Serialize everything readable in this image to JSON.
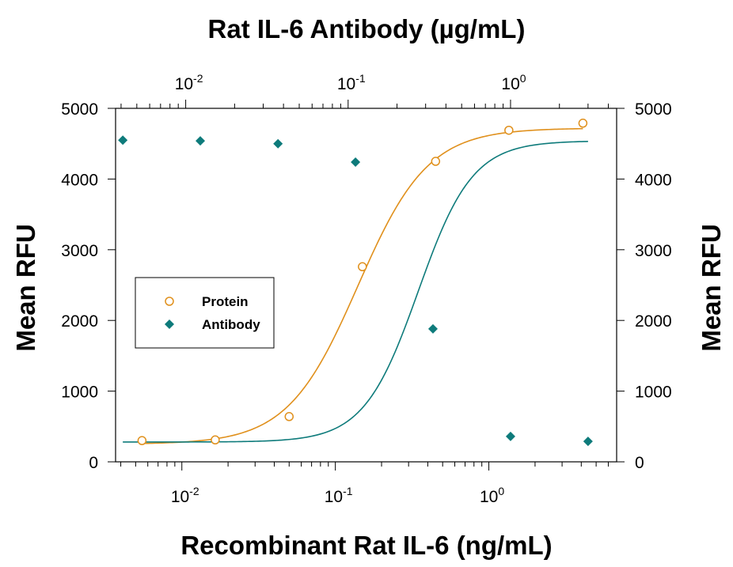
{
  "chart_data": {
    "type": "scatter",
    "title": "",
    "top_axis": {
      "label": "Rat IL-6 Antibody (µg/mL)",
      "scale": "log",
      "range": [
        0.0037,
        4.5
      ],
      "ticks": [
        {
          "value": 0.01,
          "base": "10",
          "exp": "-2"
        },
        {
          "value": 0.1,
          "base": "10",
          "exp": "-1"
        },
        {
          "value": 1,
          "base": "10",
          "exp": "0"
        }
      ]
    },
    "bottom_axis": {
      "label": "Recombinant Rat IL-6 (ng/mL)",
      "scale": "log",
      "range": [
        0.0037,
        6.8
      ],
      "ticks": [
        {
          "value": 0.01,
          "base": "10",
          "exp": "-2"
        },
        {
          "value": 0.1,
          "base": "10",
          "exp": "-1"
        },
        {
          "value": 1,
          "base": "10",
          "exp": "0"
        }
      ]
    },
    "left_axis": {
      "label": "Mean RFU",
      "range": [
        0,
        5000
      ],
      "ticks": [
        "0",
        "1000",
        "2000",
        "3000",
        "4000",
        "5000"
      ]
    },
    "right_axis": {
      "label": "Mean RFU",
      "range": [
        0,
        5000
      ],
      "ticks": [
        "0",
        "1000",
        "2000",
        "3000",
        "4000",
        "5000"
      ]
    },
    "grid": false,
    "legend": {
      "position": "center-left"
    },
    "series": [
      {
        "name": "Protein",
        "axis": "bottom",
        "marker": "open-circle",
        "color": "#e0901c",
        "x": [
          0.0055,
          0.0165,
          0.05,
          0.15,
          0.45,
          1.35,
          4.1
        ],
        "y": [
          300,
          310,
          640,
          2760,
          4250,
          4690,
          4790
        ],
        "fit": {
          "bottom": 250,
          "top": 4720,
          "ec50": 0.14,
          "hill": 1.9
        }
      },
      {
        "name": "Antibody",
        "axis": "top",
        "marker": "filled-diamond",
        "color": "#0e7b7b",
        "x": [
          0.0041,
          0.0123,
          0.037,
          0.111,
          0.333,
          1.0,
          3.0
        ],
        "y": [
          4550,
          4540,
          4500,
          4240,
          1880,
          360,
          290
        ],
        "fit": {
          "bottom": 280,
          "top": 4540,
          "ec50": 0.27,
          "hill": 2.6
        }
      }
    ]
  }
}
